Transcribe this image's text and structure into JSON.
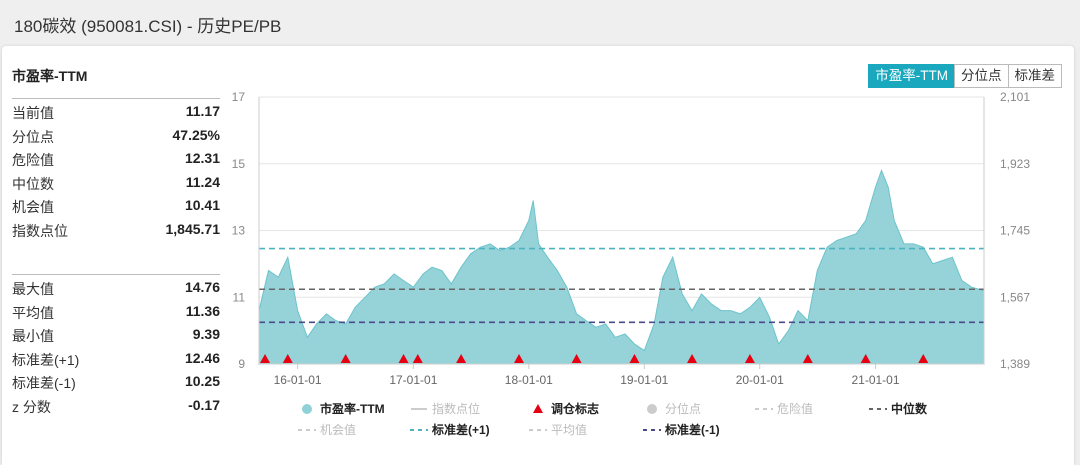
{
  "header": {
    "title": "180碳效 (950081.CSI) - 历史PE/PB"
  },
  "panel": {
    "title": "市盈率-TTM"
  },
  "tabs": [
    "市盈率-TTM",
    "分位点",
    "标准差"
  ],
  "stats": [
    {
      "label": "当前值",
      "value": "11.17"
    },
    {
      "label": "分位点",
      "value": "47.25%"
    },
    {
      "label": "危险值",
      "value": "12.31"
    },
    {
      "label": "中位数",
      "value": "11.24"
    },
    {
      "label": "机会值",
      "value": "10.41"
    },
    {
      "label": "指数点位",
      "value": "1,845.71"
    }
  ],
  "stats2": [
    {
      "label": "最大值",
      "value": "14.76"
    },
    {
      "label": "平均值",
      "value": "11.36"
    },
    {
      "label": "最小值",
      "value": "9.39"
    },
    {
      "label": "标准差(+1)",
      "value": "12.46"
    },
    {
      "label": "标准差(-1)",
      "value": "10.25"
    },
    {
      "label": "z 分数",
      "value": "-0.17"
    }
  ],
  "colors": {
    "area_fill": "#8fd1d7",
    "area_line": "#6cc3cb",
    "std_line": "#4fb3bf",
    "median_line": "#666666",
    "std_minus_line": "#4a4a8a",
    "marker": "#e60012",
    "tab_active": "#19a8be"
  },
  "chart_data": {
    "type": "area",
    "ylim": [
      9,
      17
    ],
    "y2lim": [
      1389,
      2101
    ],
    "yticks": [
      "17",
      "15",
      "13",
      "11",
      "9"
    ],
    "y2ticks": [
      "2,101",
      "1,923",
      "1,745",
      "1,567",
      "1,389"
    ],
    "xticks": [
      "16-01-01",
      "17-01-01",
      "18-01-01",
      "19-01-01",
      "20-01-01",
      "21-01-01"
    ],
    "xrange": [
      "2015-09-01",
      "2021-12-10"
    ],
    "xtick_dates": [
      "2016-01-01",
      "2017-01-01",
      "2018-01-01",
      "2019-01-01",
      "2020-01-01",
      "2021-01-01"
    ],
    "series": [
      {
        "name": "市盈率-TTM",
        "x": [
          "2015-09-01",
          "2015-10-01",
          "2015-11-01",
          "2015-12-01",
          "2016-01-01",
          "2016-02-01",
          "2016-03-01",
          "2016-04-01",
          "2016-05-01",
          "2016-06-01",
          "2016-07-01",
          "2016-08-01",
          "2016-09-01",
          "2016-10-01",
          "2016-11-01",
          "2016-12-01",
          "2017-01-01",
          "2017-02-01",
          "2017-03-01",
          "2017-04-01",
          "2017-05-01",
          "2017-06-01",
          "2017-07-01",
          "2017-08-01",
          "2017-09-01",
          "2017-10-01",
          "2017-11-01",
          "2017-12-01",
          "2018-01-01",
          "2018-01-15",
          "2018-02-01",
          "2018-03-01",
          "2018-04-01",
          "2018-05-01",
          "2018-06-01",
          "2018-07-01",
          "2018-08-01",
          "2018-09-01",
          "2018-10-01",
          "2018-11-01",
          "2018-12-01",
          "2019-01-01",
          "2019-02-01",
          "2019-03-01",
          "2019-04-01",
          "2019-05-01",
          "2019-06-01",
          "2019-07-01",
          "2019-08-01",
          "2019-09-01",
          "2019-10-01",
          "2019-11-01",
          "2019-12-01",
          "2020-01-01",
          "2020-02-01",
          "2020-03-01",
          "2020-04-01",
          "2020-05-01",
          "2020-06-01",
          "2020-07-01",
          "2020-08-01",
          "2020-09-01",
          "2020-10-01",
          "2020-11-01",
          "2020-12-01",
          "2021-01-01",
          "2021-01-20",
          "2021-02-10",
          "2021-03-01",
          "2021-04-01",
          "2021-05-01",
          "2021-06-01",
          "2021-07-01",
          "2021-08-01",
          "2021-09-01",
          "2021-10-01",
          "2021-11-01",
          "2021-12-10"
        ],
        "values": [
          10.6,
          11.8,
          11.6,
          12.2,
          10.6,
          9.8,
          10.2,
          10.5,
          10.3,
          10.2,
          10.7,
          11.0,
          11.3,
          11.4,
          11.7,
          11.5,
          11.3,
          11.7,
          11.9,
          11.8,
          11.4,
          11.9,
          12.3,
          12.5,
          12.6,
          12.4,
          12.5,
          12.7,
          13.3,
          13.9,
          12.6,
          12.2,
          11.8,
          11.3,
          10.5,
          10.3,
          10.1,
          10.2,
          9.8,
          9.9,
          9.6,
          9.4,
          10.2,
          11.6,
          12.2,
          11.1,
          10.6,
          11.1,
          10.8,
          10.6,
          10.6,
          10.5,
          10.7,
          11.0,
          10.4,
          9.6,
          10.0,
          10.6,
          10.3,
          11.8,
          12.5,
          12.7,
          12.8,
          12.9,
          13.3,
          14.3,
          14.8,
          14.3,
          13.3,
          12.6,
          12.6,
          12.5,
          12.0,
          12.1,
          12.2,
          11.5,
          11.3,
          11.2
        ]
      }
    ],
    "hlines": [
      {
        "name": "标准差(+1)",
        "value": 12.46
      },
      {
        "name": "中位数",
        "value": 11.24
      },
      {
        "name": "标准差(-1)",
        "value": 10.25
      }
    ],
    "rebalance_markers": [
      "2015-09-20",
      "2015-12-01",
      "2016-06-01",
      "2016-12-01",
      "2017-01-15",
      "2017-06-01",
      "2017-12-01",
      "2018-06-01",
      "2018-12-01",
      "2019-06-01",
      "2019-12-01",
      "2020-06-01",
      "2020-12-01",
      "2021-06-01"
    ],
    "legend": [
      {
        "label": "市盈率-TTM",
        "kind": "dot",
        "color": "#8fd1d7",
        "faded": false
      },
      {
        "label": "指数点位",
        "kind": "line",
        "color": "#cccccc",
        "faded": true
      },
      {
        "label": "调仓标志",
        "kind": "triangle",
        "color": "#e60012",
        "faded": false
      },
      {
        "label": "分位点",
        "kind": "dot",
        "color": "#cccccc",
        "faded": true
      },
      {
        "label": "危险值",
        "kind": "dash",
        "color": "#cccccc",
        "faded": true
      },
      {
        "label": "中位数",
        "kind": "dash",
        "color": "#666666",
        "faded": false
      },
      {
        "label": "机会值",
        "kind": "dash",
        "color": "#cccccc",
        "faded": true
      },
      {
        "label": "标准差(+1)",
        "kind": "dash",
        "color": "#4fb3bf",
        "faded": false
      },
      {
        "label": "平均值",
        "kind": "dash",
        "color": "#cccccc",
        "faded": true
      },
      {
        "label": "标准差(-1)",
        "kind": "dash",
        "color": "#4a4a8a",
        "faded": false
      }
    ]
  }
}
